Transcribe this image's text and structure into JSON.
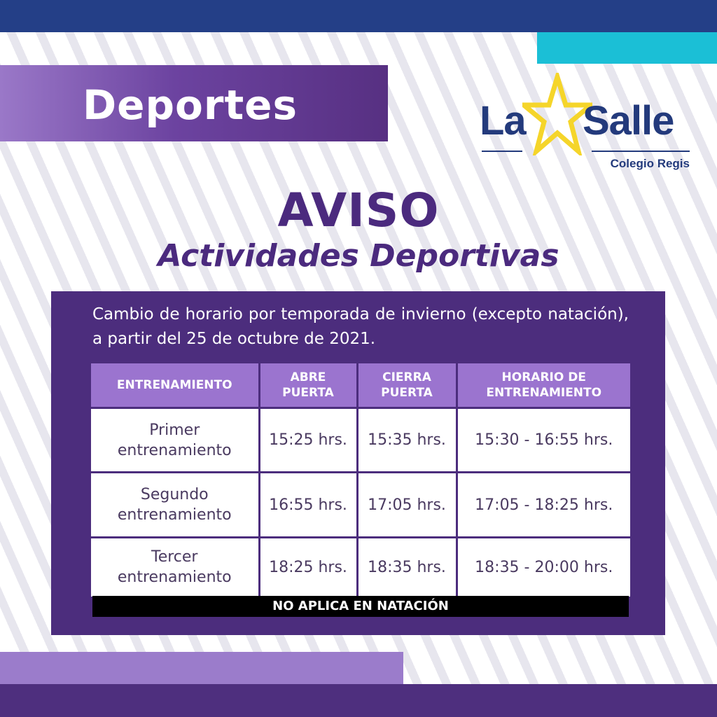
{
  "header": {
    "section_title": "Deportes"
  },
  "logo": {
    "word_left": "La",
    "word_right": "Salle",
    "subtitle": "Colegio Regis"
  },
  "notice": {
    "title": "AVISO",
    "subtitle": "Actividades Deportivas",
    "description": "Cambio de horario por temporada de invierno (excepto natación), a partir del 25 de octubre de 2021."
  },
  "table": {
    "headers": [
      "ENTRENAMIENTO",
      "ABRE PUERTA",
      "CIERRA PUERTA",
      "HORARIO DE ENTRENAMIENTO"
    ],
    "rows": [
      [
        "Primer entrenamiento",
        "15:25 hrs.",
        "15:35 hrs.",
        "15:30 - 16:55 hrs."
      ],
      [
        "Segundo entrenamiento",
        "16:55 hrs.",
        "17:05 hrs.",
        "17:05 - 18:25 hrs."
      ],
      [
        "Tercer entrenamiento",
        "18:25 hrs.",
        "18:35 hrs.",
        "18:35 - 20:00 hrs."
      ]
    ],
    "footer_note": "NO APLICA EN NATACIÓN"
  },
  "colors": {
    "navy": "#243f87",
    "cyan": "#1bbfd6",
    "purple_dark": "#4c2d7d",
    "purple_light": "#9b74cf",
    "star_yellow": "#f5d52a"
  }
}
